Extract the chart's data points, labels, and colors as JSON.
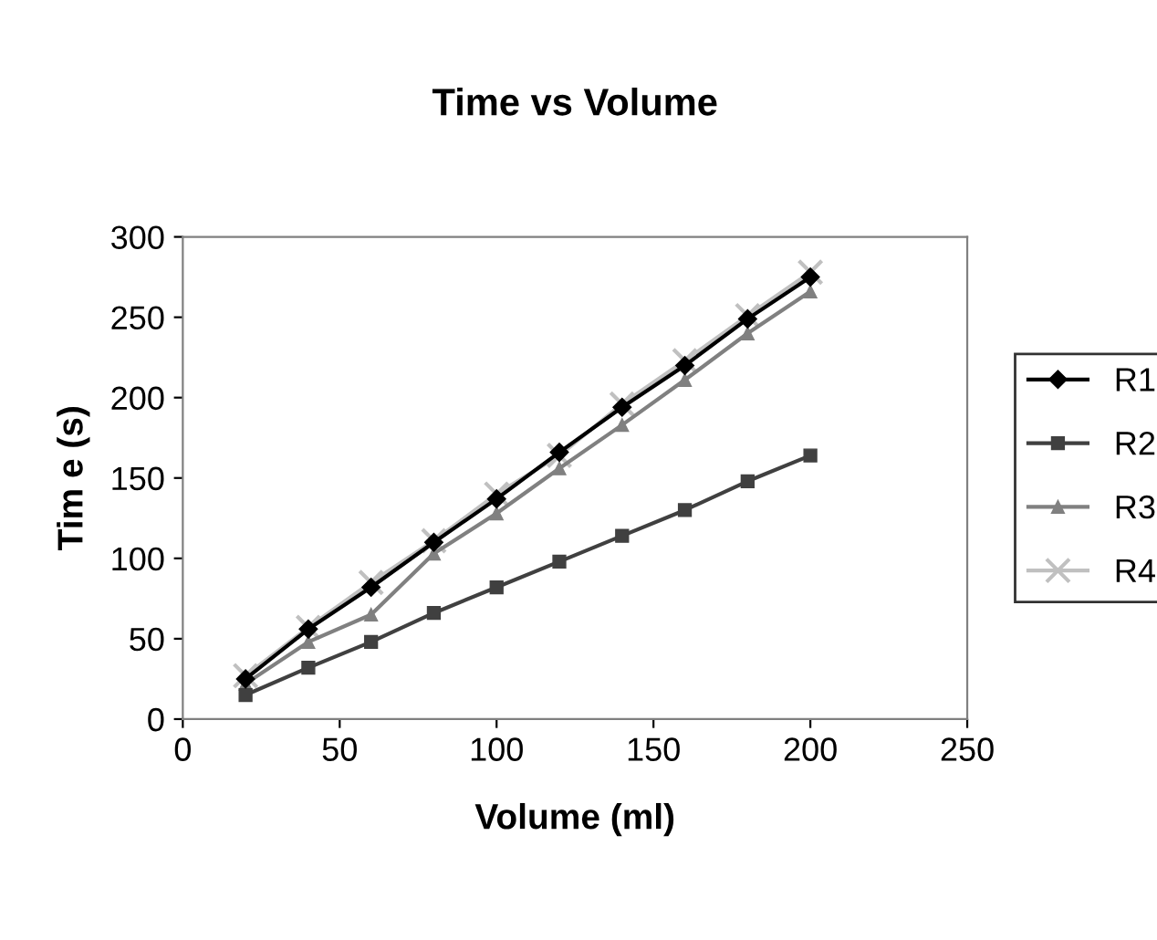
{
  "chart_data": {
    "type": "line",
    "title": "Time vs Volume",
    "xlabel": "Volume (ml)",
    "ylabel": "Tim e (s)",
    "x": [
      20,
      40,
      60,
      80,
      100,
      120,
      140,
      160,
      180,
      200
    ],
    "xlim": [
      0,
      250
    ],
    "xticks": [
      0,
      50,
      100,
      150,
      200,
      250
    ],
    "ylim": [
      0,
      300
    ],
    "yticks": [
      0,
      50,
      100,
      150,
      200,
      250,
      300
    ],
    "grid": false,
    "legend": "right",
    "series": [
      {
        "name": "R1",
        "color": "#000000",
        "marker": "diamond",
        "values": [
          25,
          56,
          82,
          110,
          137,
          166,
          194,
          220,
          249,
          275
        ]
      },
      {
        "name": "R2",
        "color": "#404040",
        "marker": "square",
        "values": [
          15,
          32,
          48,
          66,
          82,
          98,
          114,
          130,
          148,
          164
        ]
      },
      {
        "name": "R3",
        "color": "#808080",
        "marker": "triangle",
        "values": [
          22,
          48,
          65,
          103,
          128,
          156,
          183,
          211,
          240,
          266
        ]
      },
      {
        "name": "R4",
        "color": "#c0c0c0",
        "marker": "cross",
        "values": [
          27,
          57,
          85,
          111,
          140,
          164,
          196,
          223,
          251,
          278
        ]
      }
    ]
  }
}
